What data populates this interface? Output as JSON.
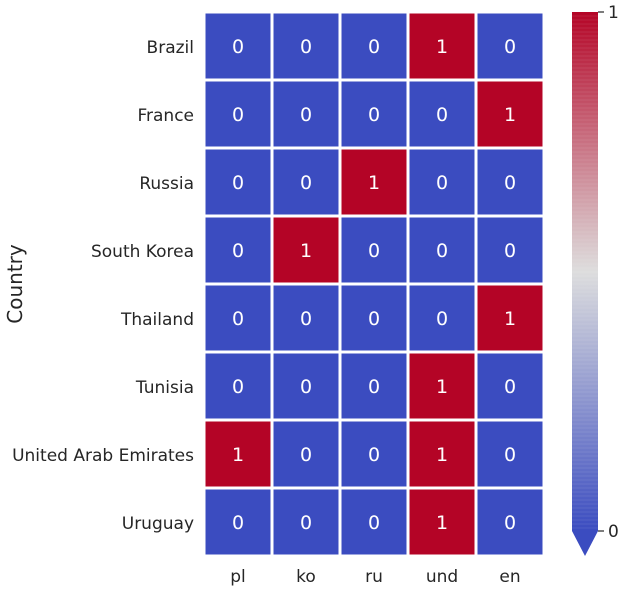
{
  "chart_data": {
    "type": "heatmap",
    "title": "",
    "xlabel": "",
    "ylabel": "Country",
    "x_categories": [
      "pl",
      "ko",
      "ru",
      "und",
      "en"
    ],
    "y_categories": [
      "Brazil",
      "France",
      "Russia",
      "South Korea",
      "Thailand",
      "Tunisia",
      "United Arab Emirates",
      "Uruguay"
    ],
    "values": [
      [
        0,
        0,
        0,
        1,
        0
      ],
      [
        0,
        0,
        0,
        0,
        1
      ],
      [
        0,
        0,
        1,
        0,
        0
      ],
      [
        0,
        1,
        0,
        0,
        0
      ],
      [
        0,
        0,
        0,
        0,
        1
      ],
      [
        0,
        0,
        0,
        1,
        0
      ],
      [
        1,
        0,
        0,
        1,
        0
      ],
      [
        0,
        0,
        0,
        1,
        0
      ]
    ],
    "colorbar": {
      "min": 0,
      "max": 1,
      "tick_labels": [
        "0",
        "1"
      ],
      "colormap": "coolwarm",
      "extend": "min"
    },
    "colors": {
      "low": "#3b4cc0",
      "high": "#b40426",
      "cell_border": "#ffffff",
      "cell_text": "#ffffff",
      "label_text": "#262626"
    },
    "grid": true
  }
}
